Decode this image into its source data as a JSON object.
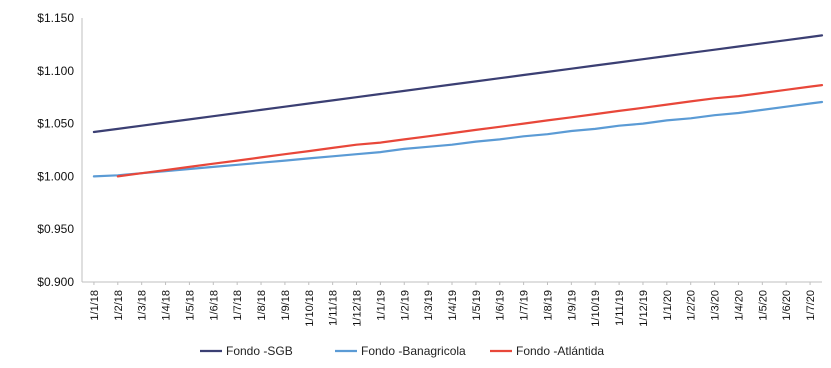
{
  "chart_data": {
    "type": "line",
    "title": "",
    "xlabel": "",
    "ylabel": "",
    "x": [
      "1/1/18",
      "1/2/18",
      "1/3/18",
      "1/4/18",
      "1/5/18",
      "1/6/18",
      "1/7/18",
      "1/8/18",
      "1/9/18",
      "1/10/18",
      "1/11/18",
      "1/12/18",
      "1/1/19",
      "1/2/19",
      "1/3/19",
      "1/4/19",
      "1/5/19",
      "1/6/19",
      "1/7/19",
      "1/8/19",
      "1/9/19",
      "1/10/19",
      "1/11/19",
      "1/12/19",
      "1/1/20",
      "1/2/20",
      "1/3/20",
      "1/4/20",
      "1/5/20",
      "1/6/20",
      "1/7/20"
    ],
    "ylim": [
      0.9,
      1.15
    ],
    "yticks": [
      0.9,
      0.95,
      1.0,
      1.05,
      1.1,
      1.15
    ],
    "ytick_labels": [
      "$0.900",
      "$0.950",
      "$1.000",
      "$1.050",
      "$1.100",
      "$1.150"
    ],
    "grid": false,
    "legend_position": "bottom",
    "series": [
      {
        "name": "Fondo -SGB",
        "color": "#3b3f73",
        "values": [
          1.042,
          1.045,
          1.048,
          1.051,
          1.054,
          1.057,
          1.06,
          1.063,
          1.066,
          1.069,
          1.072,
          1.075,
          1.078,
          1.081,
          1.084,
          1.087,
          1.09,
          1.093,
          1.096,
          1.099,
          1.102,
          1.105,
          1.108,
          1.111,
          1.114,
          1.117,
          1.12,
          1.123,
          1.126,
          1.129,
          1.132
        ]
      },
      {
        "name": "Fondo -Banagricola",
        "color": "#5b9bd5",
        "values": [
          1.0,
          1.001,
          1.003,
          1.005,
          1.007,
          1.009,
          1.011,
          1.013,
          1.015,
          1.017,
          1.019,
          1.021,
          1.023,
          1.026,
          1.028,
          1.03,
          1.033,
          1.035,
          1.038,
          1.04,
          1.043,
          1.045,
          1.048,
          1.05,
          1.053,
          1.055,
          1.058,
          1.06,
          1.063,
          1.066,
          1.069
        ]
      },
      {
        "name": "Fondo -Atlántida",
        "color": "#e8473a",
        "values": [
          null,
          1.0,
          1.003,
          1.006,
          1.009,
          1.012,
          1.015,
          1.018,
          1.021,
          1.024,
          1.027,
          1.03,
          1.032,
          1.035,
          1.038,
          1.041,
          1.044,
          1.047,
          1.05,
          1.053,
          1.056,
          1.059,
          1.062,
          1.065,
          1.068,
          1.071,
          1.074,
          1.076,
          1.079,
          1.082,
          1.085
        ]
      }
    ]
  }
}
